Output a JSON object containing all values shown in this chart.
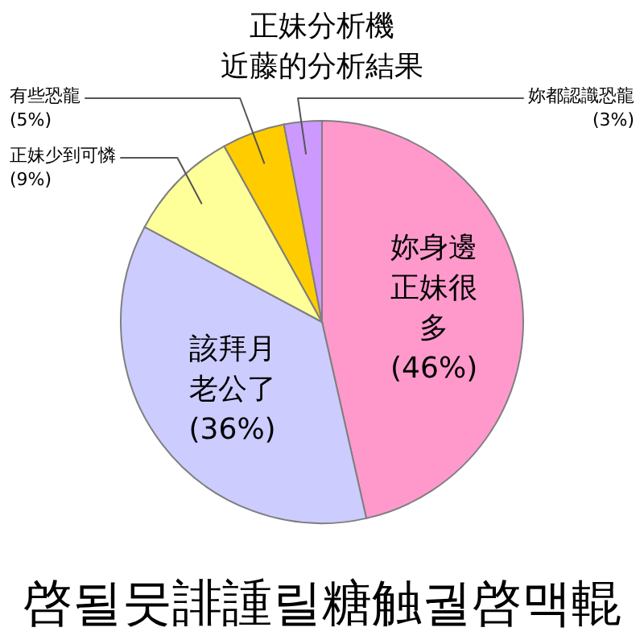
{
  "chart_data": {
    "type": "pie",
    "title": "正妹分析機",
    "subtitle": "近藤的分析結果",
    "categories": [
      "妳身邊正妹很多",
      "該拜月老公了",
      "正妹少到可憐",
      "有些恐龍",
      "妳都認識恐龍"
    ],
    "values": [
      46,
      36,
      9,
      5,
      3
    ],
    "colors": [
      "#ff99cc",
      "#ccccff",
      "#ffff99",
      "#ffcc00",
      "#cc99ff"
    ],
    "value_labels": [
      "(46%)",
      "(36%)",
      "(9%)",
      "(5%)",
      "(3%)"
    ],
    "annotations": [
      "啓될뭇誹諥릴糖触궐啓맥輥"
    ]
  }
}
